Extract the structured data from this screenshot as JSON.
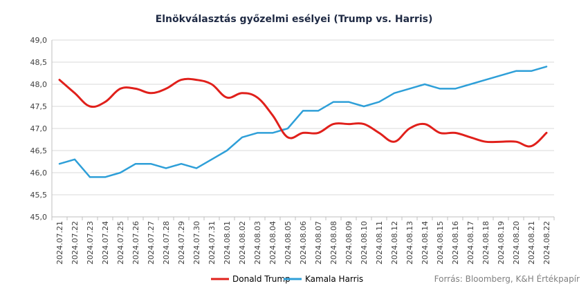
{
  "chart_data": {
    "type": "line",
    "title": "Elnökválasztás győzelmi esélyei (Trump vs. Harris)",
    "source": "Forrás: Bloomberg, K&H Értékpapír",
    "xlabel": "",
    "ylabel": "",
    "ylim": [
      45.0,
      49.0
    ],
    "yticks": [
      45.0,
      45.5,
      46.0,
      46.5,
      47.0,
      47.5,
      48.0,
      48.5,
      49.0
    ],
    "y_tick_format": "comma_one_decimal",
    "grid": "horizontal",
    "legend_position": "bottom",
    "categories": [
      "2024.07.21",
      "2024.07.22",
      "2024.07.23",
      "2024.07.24",
      "2024.07.25",
      "2024.07.26",
      "2024.07.27",
      "2024.07.28",
      "2024.07.29",
      "2024.07.30",
      "2024.07.31",
      "2024.08.01",
      "2024.08.02",
      "2024.08.03",
      "2024.08.04",
      "2024.08.05",
      "2024.08.06",
      "2024.08.07",
      "2024.08.08",
      "2024.08.09",
      "2024.08.10",
      "2024.08.11",
      "2024.08.12",
      "2024.08.13",
      "2024.08.14",
      "2024.08.15",
      "2024.08.16",
      "2024.08.17",
      "2024.08.18",
      "2024.08.19",
      "2024.08.20",
      "2024.08.21",
      "2024.08.22"
    ],
    "series": [
      {
        "name": "Donald Trump",
        "color": "#e0201b",
        "smooth": true,
        "values": [
          48.1,
          47.8,
          47.5,
          47.6,
          47.9,
          47.9,
          47.8,
          47.9,
          48.1,
          48.1,
          48.0,
          47.7,
          47.8,
          47.7,
          47.3,
          46.8,
          46.9,
          46.9,
          47.1,
          47.1,
          47.1,
          46.9,
          46.7,
          47.0,
          47.1,
          46.9,
          46.9,
          46.8,
          46.7,
          46.7,
          46.7,
          46.6,
          46.9
        ]
      },
      {
        "name": "Kamala Harris",
        "color": "#2e9fd8",
        "smooth": false,
        "values": [
          46.2,
          46.3,
          45.9,
          45.9,
          46.0,
          46.2,
          46.2,
          46.1,
          46.2,
          46.1,
          46.3,
          46.5,
          46.8,
          46.9,
          46.9,
          47.0,
          47.4,
          47.4,
          47.6,
          47.6,
          47.5,
          47.6,
          47.8,
          47.9,
          48.0,
          47.9,
          47.9,
          48.0,
          48.1,
          48.2,
          48.3,
          48.3,
          48.4
        ]
      }
    ]
  }
}
